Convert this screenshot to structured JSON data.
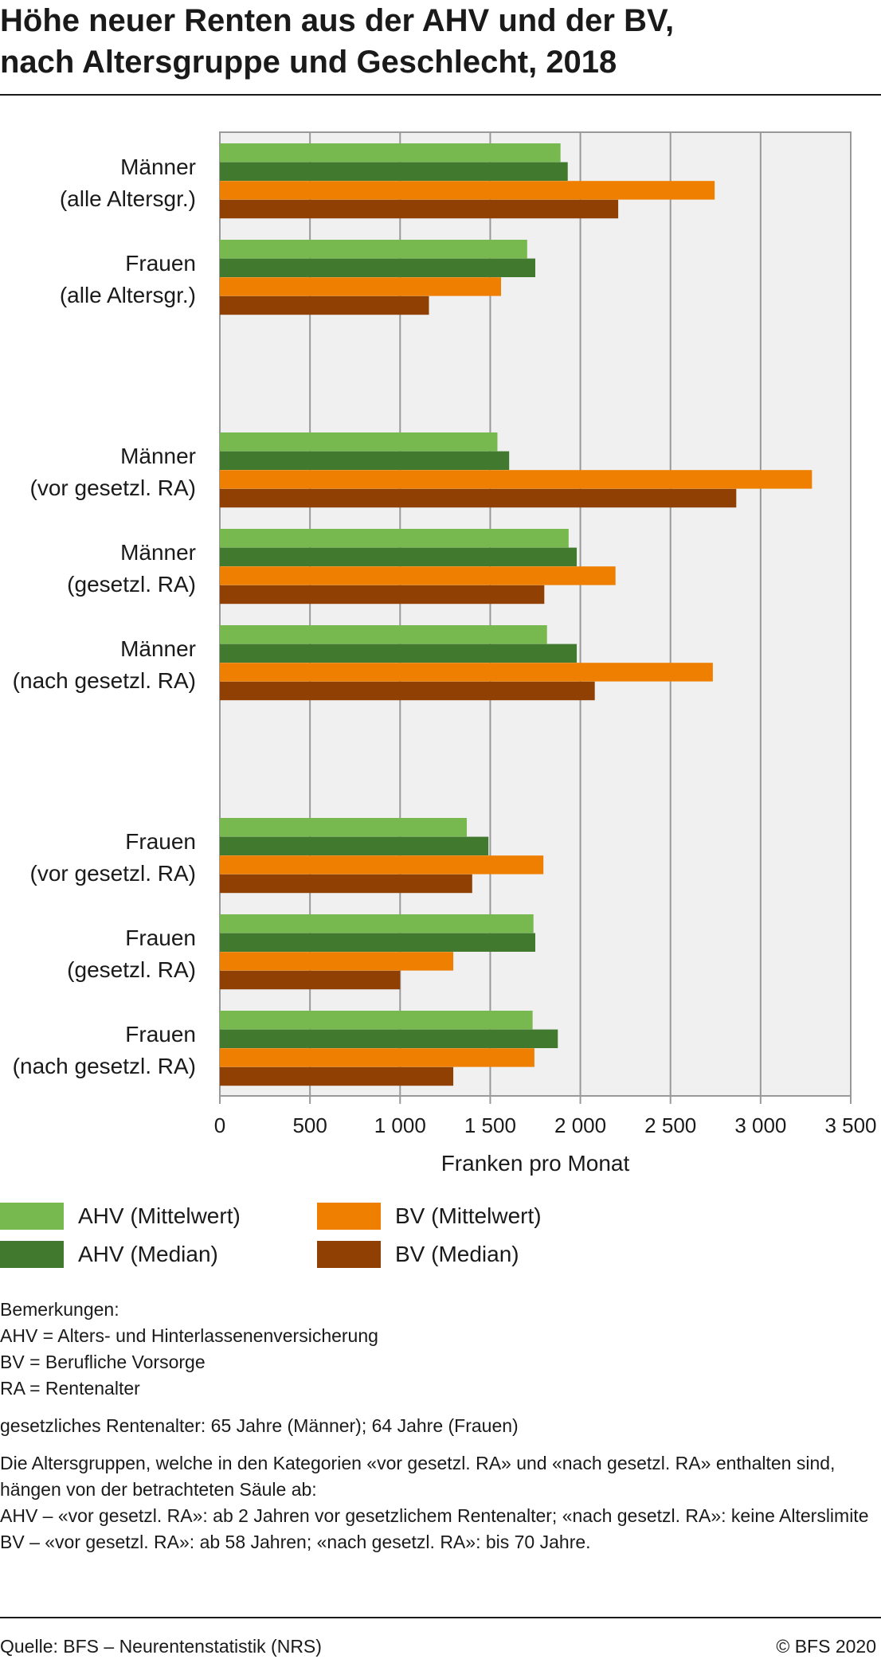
{
  "title_lines": [
    "Höhe neuer Renten aus der AHV und der BV,",
    "nach Altersgruppe und Geschlecht, 2018"
  ],
  "chart_data": {
    "type": "bar",
    "orientation": "horizontal",
    "title": "Höhe neuer Renten aus der AHV und der BV, nach Altersgruppe und Geschlecht, 2018",
    "xlabel": "Franken pro Monat",
    "ylabel": "",
    "xlim": [
      0,
      3500
    ],
    "xticks": [
      0,
      500,
      1000,
      1500,
      2000,
      2500,
      3000,
      3500
    ],
    "xtick_labels": [
      "0",
      "500",
      "1 000",
      "1 500",
      "2 000",
      "2 500",
      "3 000",
      "3 500"
    ],
    "grid": "vertical",
    "legend_position": "bottom",
    "categories": [
      {
        "lines": [
          "Männer",
          "(alle Altersgr.)"
        ]
      },
      {
        "lines": [
          "Frauen",
          "(alle Altersgr.)"
        ]
      },
      {
        "lines": [
          "Männer",
          "(vor gesetzl. RA)"
        ]
      },
      {
        "lines": [
          "Männer",
          "(gesetzl. RA)"
        ]
      },
      {
        "lines": [
          "Männer",
          "(nach gesetzl. RA)"
        ]
      },
      {
        "lines": [
          "Frauen",
          "(vor gesetzl. RA)"
        ]
      },
      {
        "lines": [
          "Frauen",
          "(gesetzl. RA)"
        ]
      },
      {
        "lines": [
          "Frauen",
          "(nach gesetzl. RA)"
        ]
      }
    ],
    "series": [
      {
        "name": "AHV (Mittelwert)",
        "color": "#78b94f",
        "values": [
          1890,
          1705,
          1540,
          1935,
          1815,
          1370,
          1740,
          1735
        ]
      },
      {
        "name": "AHV (Median)",
        "color": "#417a2e",
        "values": [
          1930,
          1750,
          1605,
          1980,
          1980,
          1490,
          1750,
          1875
        ]
      },
      {
        "name": "BV (Mittelwert)",
        "color": "#ee7f00",
        "values": [
          2745,
          1560,
          3285,
          2195,
          2735,
          1795,
          1295,
          1745
        ]
      },
      {
        "name": "BV (Median)",
        "color": "#8f4002",
        "values": [
          2210,
          1160,
          2865,
          1800,
          2080,
          1400,
          1000,
          1295
        ]
      }
    ]
  },
  "legend": [
    {
      "label": "AHV (Mittelwert)",
      "color": "#78b94f"
    },
    {
      "label": "AHV (Median)",
      "color": "#417a2e"
    },
    {
      "label": "BV (Mittelwert)",
      "color": "#ee7f00"
    },
    {
      "label": "BV (Median)",
      "color": "#8f4002"
    }
  ],
  "notes": {
    "heading": "Bemerkungen:",
    "abbreviations": [
      "AHV = Alters- und Hinterlassenenversicherung",
      "BV = Berufliche Vorsorge",
      "RA = Rentenalter"
    ],
    "retirement_age": "gesetzliches Rentenalter: 65 Jahre (Männer); 64 Jahre (Frauen)",
    "age_groups": "Die Altersgruppen, welche in den Kategorien «vor gesetzl. RA» und «nach gesetzl. RA» enthalten sind, hängen von der betrachteten Säule ab:",
    "ahv_note": "AHV – «vor gesetzl. RA»: ab 2 Jahren vor gesetzlichem Rentenalter; «nach gesetzl. RA»: keine Alterslimite",
    "bv_note": "BV – «vor gesetzl. RA»: ab 58 Jahren; «nach gesetzl. RA»: bis 70 Jahre."
  },
  "footer": {
    "source": "Quelle: BFS – Neurentenstatistik (NRS)",
    "copyright": "© BFS 2020"
  }
}
